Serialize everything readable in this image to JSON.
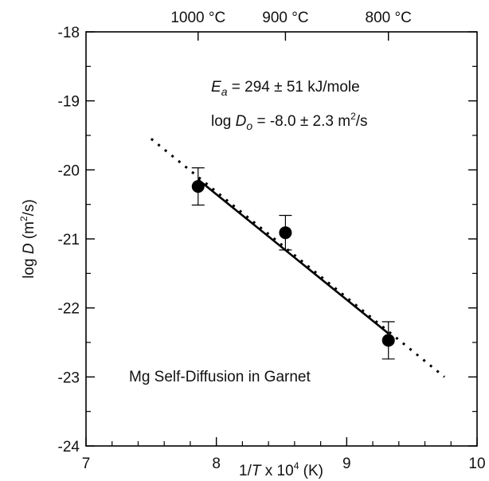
{
  "chart_data": {
    "type": "scatter",
    "x": [
      7.86,
      8.53,
      9.32
    ],
    "y": [
      -20.24,
      -20.91,
      -22.47
    ],
    "yerr": [
      0.27,
      0.25,
      0.27
    ],
    "fit_line": {
      "x": [
        7.86,
        9.32
      ],
      "y": [
        -20.14,
        -22.37
      ]
    },
    "extrapolation": {
      "x": [
        7.5,
        9.75
      ],
      "y": [
        -19.55,
        -23.0
      ]
    },
    "xlim": [
      7,
      10
    ],
    "ylim": [
      -24,
      -18
    ],
    "xticks": [
      7,
      8,
      9,
      10
    ],
    "yticks": [
      -24,
      -23,
      -22,
      -21,
      -20,
      -19,
      -18
    ],
    "xtick_labels": [
      "7",
      "8",
      "9",
      "10"
    ],
    "ytick_labels": [
      "-24",
      "-23",
      "-22",
      "-21",
      "-20",
      "-19",
      "-18"
    ],
    "xlabel": "1/T x 10⁴ (K)",
    "ylabel": "log D (m²/s)",
    "top_axis": {
      "positions": [
        7.86,
        8.53,
        9.32
      ],
      "labels": [
        "1000 °C",
        "900 °C",
        "800 °C"
      ]
    },
    "annotations": {
      "ea": "Ea = 294 ± 51 kJ/mole",
      "d0": "log Do = -8.0 ± 2.3 m²/s",
      "caption": "Mg Self-Diffusion in Garnet"
    },
    "grid": false
  }
}
